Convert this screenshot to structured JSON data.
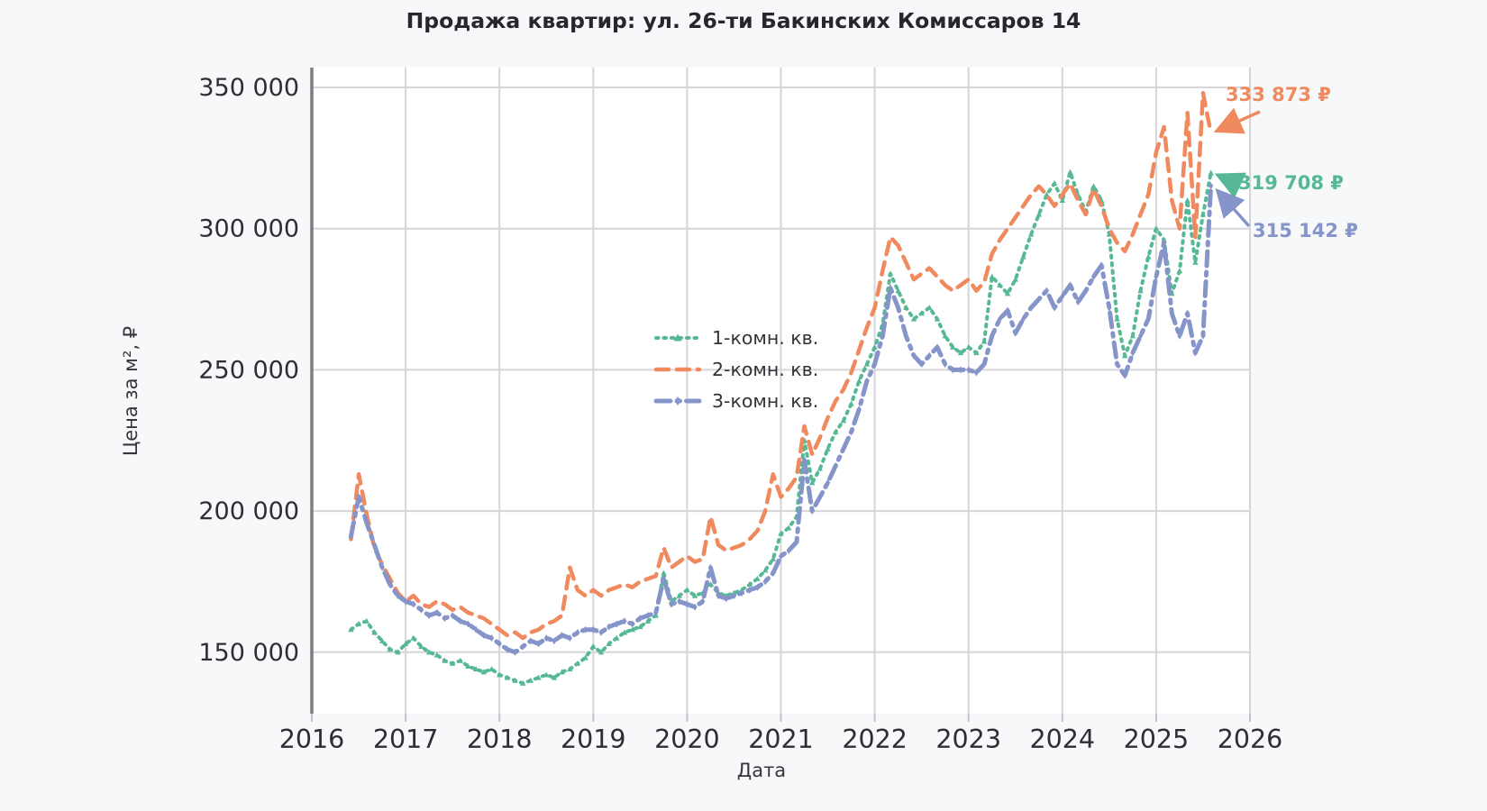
{
  "page": {
    "background": "#f7f8fa",
    "plot_background": "#ffffff",
    "gridline_color": "#d6d6da",
    "spine_color": "#7d7d82",
    "tick_label_color": "#2f2f33",
    "title_color": "#26262e"
  },
  "chart_data": {
    "type": "line",
    "title": "Продажа квартир: ул. 26-ти Бакинских Комиссаров 14",
    "xlabel": "Дата",
    "ylabel": "Цена за м², ₽",
    "xlim": [
      2016,
      2026
    ],
    "ylim": [
      128000,
      357000
    ],
    "grid": true,
    "legend_position": "center",
    "x_start_month": "2016-06",
    "x_step_months": 1,
    "xticks": [
      "2016",
      "2017",
      "2018",
      "2019",
      "2020",
      "2021",
      "2022",
      "2023",
      "2024",
      "2025",
      "2026"
    ],
    "yticks": [
      {
        "value": 150000,
        "label": "150 000"
      },
      {
        "value": 200000,
        "label": "200 000"
      },
      {
        "value": 250000,
        "label": "250 000"
      },
      {
        "value": 300000,
        "label": "300 000"
      },
      {
        "value": 350000,
        "label": "350 000"
      }
    ],
    "series": [
      {
        "name": "1-комн. кв.",
        "color": "#56b894",
        "dash": "dotted",
        "marker": "triangle",
        "end_value": 319708,
        "end_label": "319 708 ₽",
        "values": [
          158000,
          160000,
          161000,
          157000,
          154000,
          151000,
          150000,
          153000,
          155000,
          152000,
          150000,
          149000,
          147000,
          146000,
          147000,
          145000,
          144000,
          143000,
          144000,
          142000,
          141000,
          140000,
          139000,
          140000,
          141000,
          142000,
          141000,
          143000,
          144000,
          146000,
          148000,
          152000,
          150000,
          153000,
          155000,
          157000,
          158000,
          159000,
          161000,
          163000,
          178000,
          168000,
          170000,
          172000,
          170000,
          171000,
          174000,
          171000,
          170000,
          171000,
          172000,
          174000,
          176000,
          179000,
          183000,
          192000,
          194000,
          198000,
          225000,
          210000,
          215000,
          222000,
          228000,
          232000,
          238000,
          246000,
          252000,
          258000,
          266000,
          284000,
          278000,
          272000,
          268000,
          270000,
          272000,
          268000,
          262000,
          258000,
          256000,
          258000,
          256000,
          260000,
          283000,
          280000,
          277000,
          282000,
          290000,
          298000,
          305000,
          312000,
          316000,
          310000,
          320000,
          312000,
          306000,
          315000,
          310000,
          298000,
          268000,
          255000,
          262000,
          278000,
          290000,
          300000,
          296000,
          277000,
          285000,
          310000,
          288000,
          305000,
          319708
        ]
      },
      {
        "name": "2-комн. кв.",
        "color": "#f08a5e",
        "dash": "dashed",
        "marker": "none",
        "end_value": 333873,
        "end_label": "333 873 ₽",
        "values": [
          190000,
          213000,
          199000,
          187000,
          181000,
          176000,
          171000,
          168000,
          170000,
          167000,
          166000,
          168000,
          167000,
          165000,
          166000,
          164000,
          163000,
          162000,
          160000,
          158000,
          156000,
          157000,
          155000,
          157000,
          158000,
          160000,
          161000,
          163000,
          180000,
          172000,
          170000,
          172000,
          170000,
          172000,
          173000,
          174000,
          173000,
          175000,
          176000,
          177000,
          187000,
          180000,
          182000,
          184000,
          182000,
          183000,
          198000,
          188000,
          186000,
          187000,
          188000,
          190000,
          193000,
          200000,
          213000,
          205000,
          208000,
          212000,
          230000,
          220000,
          226000,
          233000,
          239000,
          243000,
          249000,
          257000,
          265000,
          272000,
          285000,
          297000,
          294000,
          288000,
          282000,
          284000,
          286000,
          283000,
          280000,
          278000,
          280000,
          282000,
          278000,
          281000,
          291000,
          296000,
          300000,
          304000,
          308000,
          312000,
          315000,
          312000,
          308000,
          312000,
          316000,
          310000,
          305000,
          314000,
          308000,
          300000,
          295000,
          292000,
          298000,
          305000,
          312000,
          327000,
          336000,
          310000,
          300000,
          341000,
          297000,
          348000,
          333873
        ]
      },
      {
        "name": "3-комн. кв.",
        "color": "#8594c9",
        "dash": "dashdot",
        "marker": "diamond",
        "end_value": 315142,
        "end_label": "315 142 ₽",
        "values": [
          191000,
          205000,
          196000,
          188000,
          180000,
          174000,
          170000,
          168000,
          167000,
          165000,
          163000,
          164000,
          162000,
          163000,
          161000,
          160000,
          158000,
          156000,
          155000,
          153000,
          151000,
          150000,
          152000,
          154000,
          153000,
          155000,
          154000,
          156000,
          155000,
          157000,
          158000,
          158000,
          157000,
          159000,
          160000,
          161000,
          160000,
          162000,
          163000,
          164000,
          176000,
          167000,
          168000,
          167000,
          166000,
          168000,
          180000,
          170000,
          169000,
          170000,
          171000,
          172000,
          173000,
          175000,
          178000,
          184000,
          186000,
          189000,
          218000,
          200000,
          205000,
          210000,
          216000,
          222000,
          228000,
          236000,
          246000,
          252000,
          262000,
          279000,
          272000,
          262000,
          255000,
          252000,
          255000,
          258000,
          252000,
          250000,
          250000,
          250000,
          249000,
          252000,
          262000,
          268000,
          271000,
          263000,
          268000,
          272000,
          275000,
          278000,
          272000,
          276000,
          280000,
          274000,
          278000,
          283000,
          287000,
          272000,
          252000,
          248000,
          256000,
          262000,
          268000,
          283000,
          295000,
          270000,
          262000,
          270000,
          256000,
          262000,
          315142
        ]
      }
    ]
  }
}
